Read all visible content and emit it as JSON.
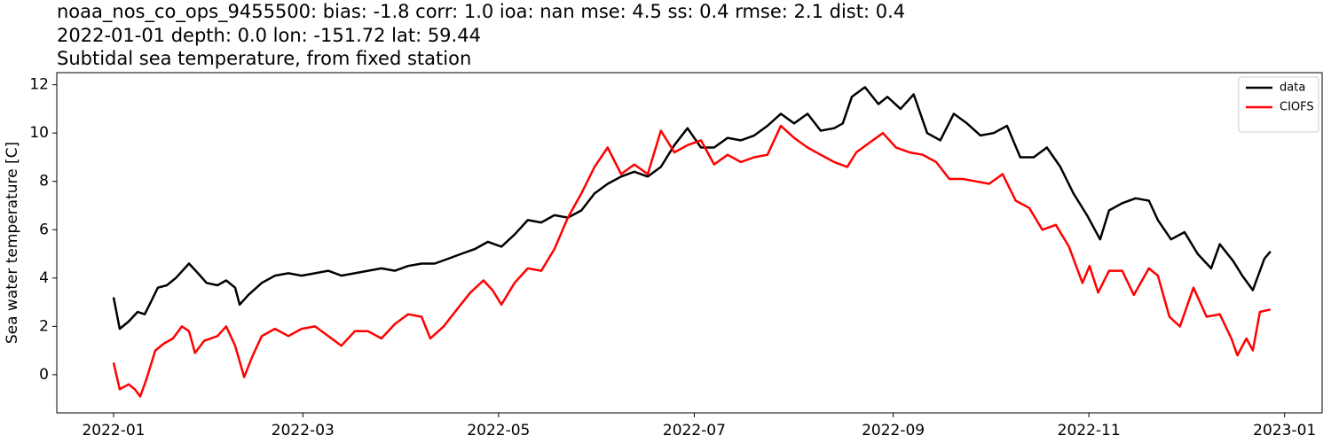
{
  "chart_data": {
    "type": "line",
    "title": "noaa_nos_co_ops_9455500: bias: -1.8  corr: 1.0  ioa: nan  mse: 4.5  ss: 0.4  rmse: 2.1  dist: 0.4",
    "subtitle": "2022-01-01 depth: 0.0 lon: -151.72 lat: 59.44",
    "subtitle2": "Subtidal sea temperature, from fixed station",
    "ylabel": "Sea water temperature [C]",
    "xlim": [
      -17.7,
      376.7
    ],
    "ylim": [
      -1.58,
      12.5
    ],
    "xticks": [
      {
        "value": 0,
        "label": "2022-01"
      },
      {
        "value": 59,
        "label": "2022-03"
      },
      {
        "value": 120,
        "label": "2022-05"
      },
      {
        "value": 181,
        "label": "2022-07"
      },
      {
        "value": 243,
        "label": "2022-09"
      },
      {
        "value": 304,
        "label": "2022-11"
      },
      {
        "value": 365,
        "label": "2023-01"
      }
    ],
    "yticks": [
      0,
      2,
      4,
      6,
      8,
      10,
      12
    ],
    "legend": "upper right",
    "series": [
      {
        "name": "data",
        "color": "#000000",
        "x": [
          0,
          1.9,
          4.7,
          7.5,
          9.7,
          11.6,
          13.8,
          16.6,
          19.4,
          23.5,
          26.3,
          29.0,
          32.4,
          35.1,
          37.9,
          39.3,
          42.0,
          46.2,
          50.3,
          54.5,
          58.6,
          62.8,
          66.9,
          71.0,
          75.2,
          79.3,
          83.5,
          87.7,
          91.8,
          96.0,
          100.1,
          104.3,
          108.4,
          112.6,
          116.7,
          120.9,
          125.0,
          129.1,
          133.3,
          137.4,
          141.6,
          145.8,
          149.9,
          154.0,
          158.2,
          162.3,
          166.5,
          170.6,
          174.8,
          178.9,
          183.1,
          187.2,
          191.4,
          195.5,
          199.7,
          203.8,
          208.0,
          212.1,
          216.3,
          220.4,
          224.6,
          227.3,
          230.1,
          234.2,
          238.4,
          241.2,
          245.3,
          249.4,
          253.6,
          257.7,
          261.9,
          266.0,
          270.2,
          274.3,
          278.5,
          282.6,
          286.8,
          290.9,
          295.1,
          299.2,
          303.4,
          307.5,
          310.3,
          314.4,
          318.6,
          322.7,
          325.5,
          329.6,
          333.8,
          337.9,
          342.1,
          344.8,
          349.0,
          351.8,
          355.1,
          358.7,
          360.6
        ],
        "values": [
          3.2,
          1.9,
          2.2,
          2.6,
          2.5,
          3.0,
          3.6,
          3.7,
          4.0,
          4.6,
          4.2,
          3.8,
          3.7,
          3.9,
          3.6,
          2.9,
          3.3,
          3.8,
          4.1,
          4.2,
          4.1,
          4.2,
          4.3,
          4.1,
          4.2,
          4.3,
          4.4,
          4.3,
          4.5,
          4.6,
          4.6,
          4.8,
          5.0,
          5.2,
          5.5,
          5.3,
          5.8,
          6.4,
          6.3,
          6.6,
          6.5,
          6.8,
          7.5,
          7.9,
          8.2,
          8.4,
          8.2,
          8.6,
          9.5,
          10.2,
          9.4,
          9.4,
          9.8,
          9.7,
          9.9,
          10.3,
          10.8,
          10.4,
          10.8,
          10.1,
          10.2,
          10.4,
          11.5,
          11.9,
          11.2,
          11.5,
          11.0,
          11.6,
          10.0,
          9.7,
          10.8,
          10.4,
          9.9,
          10.0,
          10.3,
          9.0,
          9.0,
          9.4,
          8.6,
          7.5,
          6.6,
          5.6,
          6.8,
          7.1,
          7.3,
          7.2,
          6.4,
          5.6,
          5.9,
          5.0,
          4.4,
          5.4,
          4.7,
          4.1,
          3.5,
          4.8,
          5.1
        ]
      },
      {
        "name": "CIOFS",
        "color": "#ff0000",
        "x": [
          0,
          1.9,
          4.7,
          6.6,
          8.3,
          10.2,
          13.0,
          15.8,
          18.5,
          21.3,
          23.5,
          25.4,
          28.2,
          32.4,
          35.1,
          37.9,
          40.7,
          43.4,
          46.2,
          50.3,
          54.5,
          58.6,
          62.8,
          66.9,
          71.0,
          75.2,
          79.3,
          83.5,
          87.7,
          91.8,
          96.0,
          98.7,
          102.9,
          107.0,
          111.2,
          115.3,
          118.1,
          120.9,
          125.0,
          129.1,
          133.3,
          137.4,
          141.6,
          145.8,
          149.9,
          154.0,
          158.2,
          162.3,
          166.5,
          170.6,
          174.8,
          178.9,
          183.1,
          187.2,
          191.4,
          195.5,
          199.7,
          203.8,
          208.0,
          212.1,
          216.3,
          220.4,
          224.6,
          228.7,
          231.5,
          235.6,
          239.8,
          243.9,
          248.1,
          252.2,
          256.4,
          260.5,
          264.7,
          268.8,
          272.9,
          277.1,
          281.2,
          285.4,
          289.5,
          293.7,
          297.8,
          302.0,
          304.2,
          306.9,
          310.3,
          314.4,
          318.0,
          322.7,
          325.5,
          329.1,
          332.4,
          336.6,
          340.7,
          344.8,
          348.4,
          350.3,
          353.1,
          355.1,
          357.3,
          360.6
        ],
        "values": [
          0.5,
          -0.6,
          -0.4,
          -0.6,
          -0.9,
          -0.2,
          1.0,
          1.3,
          1.5,
          2.0,
          1.8,
          0.9,
          1.4,
          1.6,
          2.0,
          1.2,
          -0.1,
          0.8,
          1.6,
          1.9,
          1.6,
          1.9,
          2.0,
          1.6,
          1.2,
          1.8,
          1.8,
          1.5,
          2.1,
          2.5,
          2.4,
          1.5,
          2.0,
          2.7,
          3.4,
          3.9,
          3.5,
          2.9,
          3.8,
          4.4,
          4.3,
          5.2,
          6.5,
          7.5,
          8.6,
          9.4,
          8.3,
          8.7,
          8.3,
          10.1,
          9.2,
          9.5,
          9.7,
          8.7,
          9.1,
          8.8,
          9.0,
          9.1,
          10.3,
          9.8,
          9.4,
          9.1,
          8.8,
          8.6,
          9.2,
          9.6,
          10.0,
          9.4,
          9.2,
          9.1,
          8.8,
          8.1,
          8.1,
          8.0,
          7.9,
          8.3,
          7.2,
          6.9,
          6.0,
          6.2,
          5.3,
          3.8,
          4.5,
          3.4,
          4.3,
          4.3,
          3.3,
          4.4,
          4.1,
          2.4,
          2.0,
          3.6,
          2.4,
          2.5,
          1.5,
          0.8,
          1.5,
          1.0,
          2.6,
          2.7
        ]
      }
    ]
  }
}
